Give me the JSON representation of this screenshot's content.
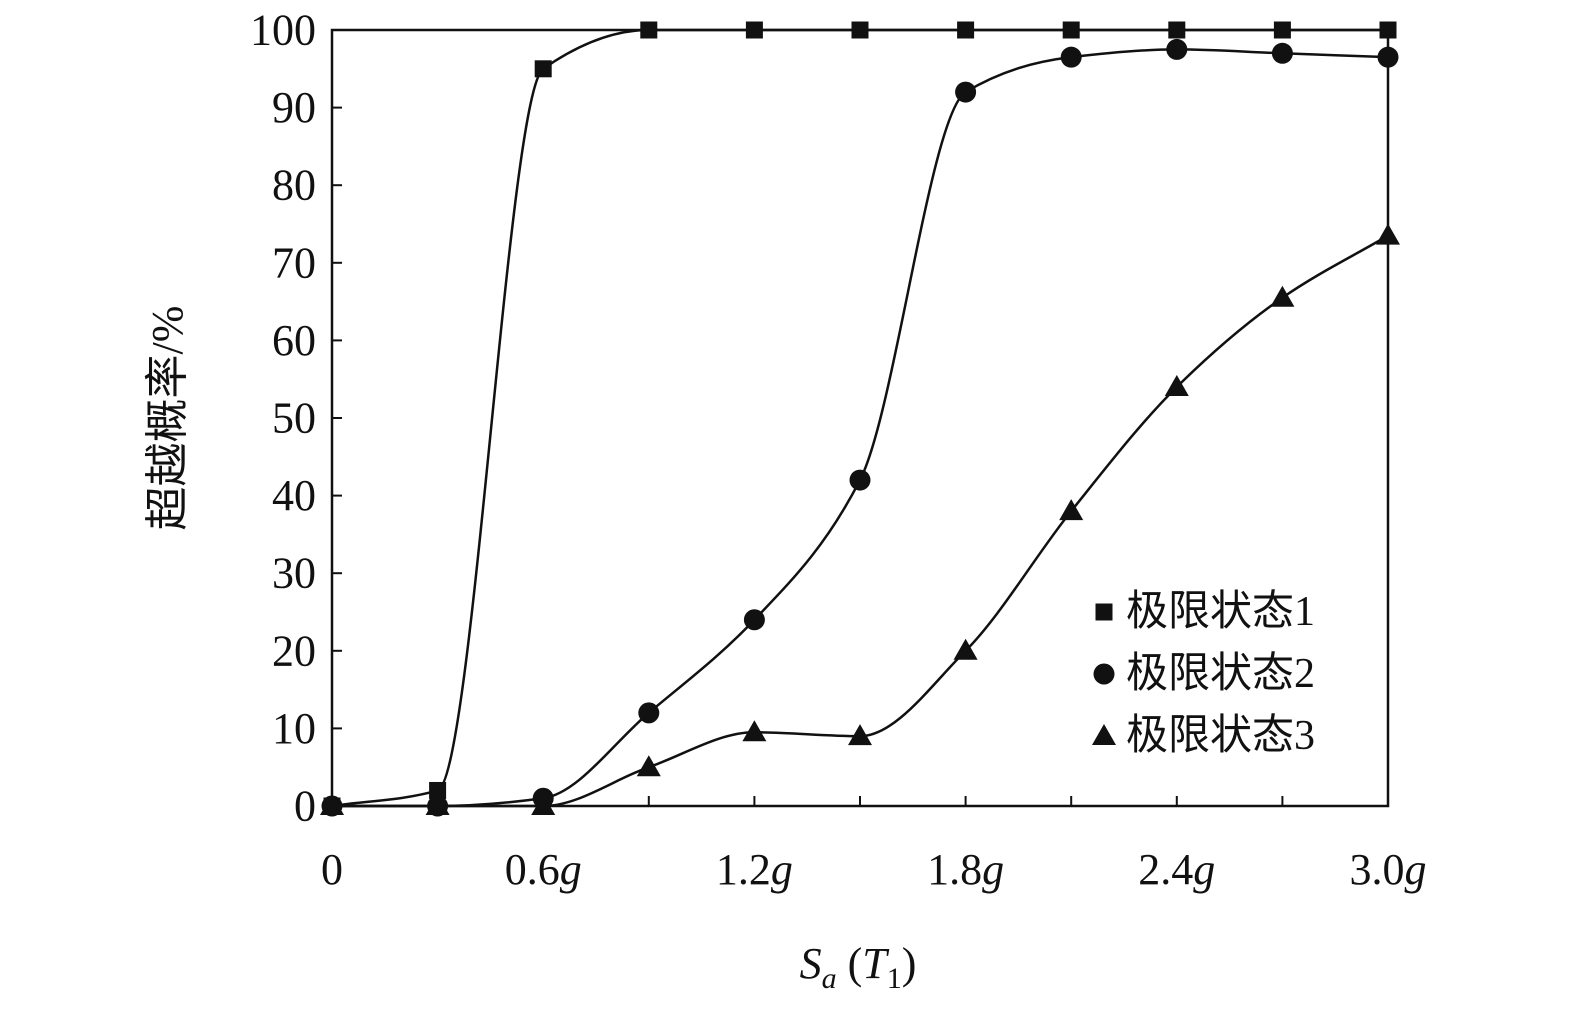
{
  "chart_data": {
    "type": "line",
    "title": "",
    "x": [
      0,
      0.3,
      0.6,
      0.9,
      1.2,
      1.5,
      1.8,
      2.1,
      2.4,
      2.7,
      3.0
    ],
    "xticks": [
      {
        "value": 0,
        "label": "0",
        "suffix": ""
      },
      {
        "value": 0.6,
        "label": "0.6",
        "suffix": "g"
      },
      {
        "value": 1.2,
        "label": "1.2",
        "suffix": "g"
      },
      {
        "value": 1.8,
        "label": "1.8",
        "suffix": "g"
      },
      {
        "value": 2.4,
        "label": "2.4",
        "suffix": "g"
      },
      {
        "value": 3.0,
        "label": "3.0",
        "suffix": "g"
      }
    ],
    "yticks": [
      0,
      10,
      20,
      30,
      40,
      50,
      60,
      70,
      80,
      90,
      100
    ],
    "xlim": [
      0,
      3.0
    ],
    "ylim": [
      0,
      100
    ],
    "xlabel": {
      "main": "S",
      "sub": "a",
      "open": " (",
      "var": "T",
      "varsub": "1",
      "close": ")"
    },
    "ylabel": "超越概率/%",
    "grid": false,
    "legend_position": "bottom-right",
    "series": [
      {
        "name": "极限状态1",
        "marker": "square",
        "color": "#111111",
        "values": [
          0,
          2,
          95,
          100,
          100,
          100,
          100,
          100,
          100,
          100,
          100
        ]
      },
      {
        "name": "极限状态2",
        "marker": "circle",
        "color": "#111111",
        "values": [
          0,
          0,
          1,
          12,
          24,
          42,
          92,
          96.5,
          97.5,
          97,
          96.5
        ]
      },
      {
        "name": "极限状态3",
        "marker": "triangle",
        "color": "#111111",
        "values": [
          0,
          0,
          0,
          5,
          9.5,
          9,
          20,
          38,
          54,
          65.5,
          73.5
        ]
      }
    ]
  }
}
